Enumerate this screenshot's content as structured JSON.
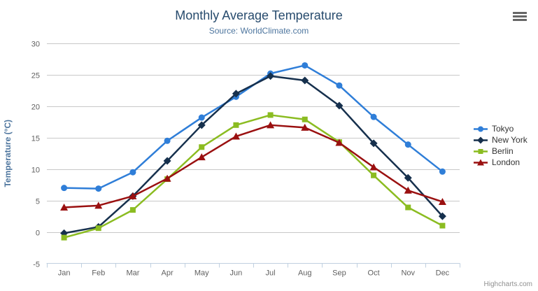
{
  "chart": {
    "credits": "Highcharts.com",
    "export_button": "context-menu"
  },
  "chart_data": {
    "type": "line",
    "title": "Monthly Average Temperature",
    "subtitle": "Source: WorldClimate.com",
    "categories": [
      "Jan",
      "Feb",
      "Mar",
      "Apr",
      "May",
      "Jun",
      "Jul",
      "Aug",
      "Sep",
      "Oct",
      "Nov",
      "Dec"
    ],
    "xlabel": "",
    "ylabel": "Temperature (°C)",
    "ylim": [
      -5,
      30
    ],
    "ytick_step": 5,
    "grid": true,
    "legend_position": "right",
    "series": [
      {
        "name": "Tokyo",
        "color": "#2f7ed8",
        "marker": "circle",
        "values": [
          7.0,
          6.9,
          9.5,
          14.5,
          18.2,
          21.5,
          25.2,
          26.5,
          23.3,
          18.3,
          13.9,
          9.6
        ]
      },
      {
        "name": "New York",
        "color": "#16304d",
        "marker": "diamond",
        "values": [
          -0.2,
          0.8,
          5.7,
          11.3,
          17.0,
          22.0,
          24.8,
          24.1,
          20.1,
          14.1,
          8.6,
          2.5
        ]
      },
      {
        "name": "Berlin",
        "color": "#8bbc21",
        "marker": "square",
        "values": [
          -0.9,
          0.6,
          3.5,
          8.4,
          13.5,
          17.0,
          18.6,
          17.9,
          14.3,
          9.0,
          3.9,
          1.0
        ]
      },
      {
        "name": "London",
        "color": "#9a1010",
        "marker": "triangle",
        "values": [
          3.9,
          4.2,
          5.7,
          8.5,
          11.9,
          15.2,
          17.0,
          16.6,
          14.2,
          10.3,
          6.6,
          4.8
        ]
      }
    ],
    "colors": {
      "title": "#274b6d",
      "subtitle": "#4d759e",
      "axis_title": "#4d759e",
      "axis_labels": "#606060",
      "grid": "#c8c8c8",
      "axis_line": "#c0d0e0",
      "legend_text": "#333333",
      "credits": "#909090"
    }
  }
}
